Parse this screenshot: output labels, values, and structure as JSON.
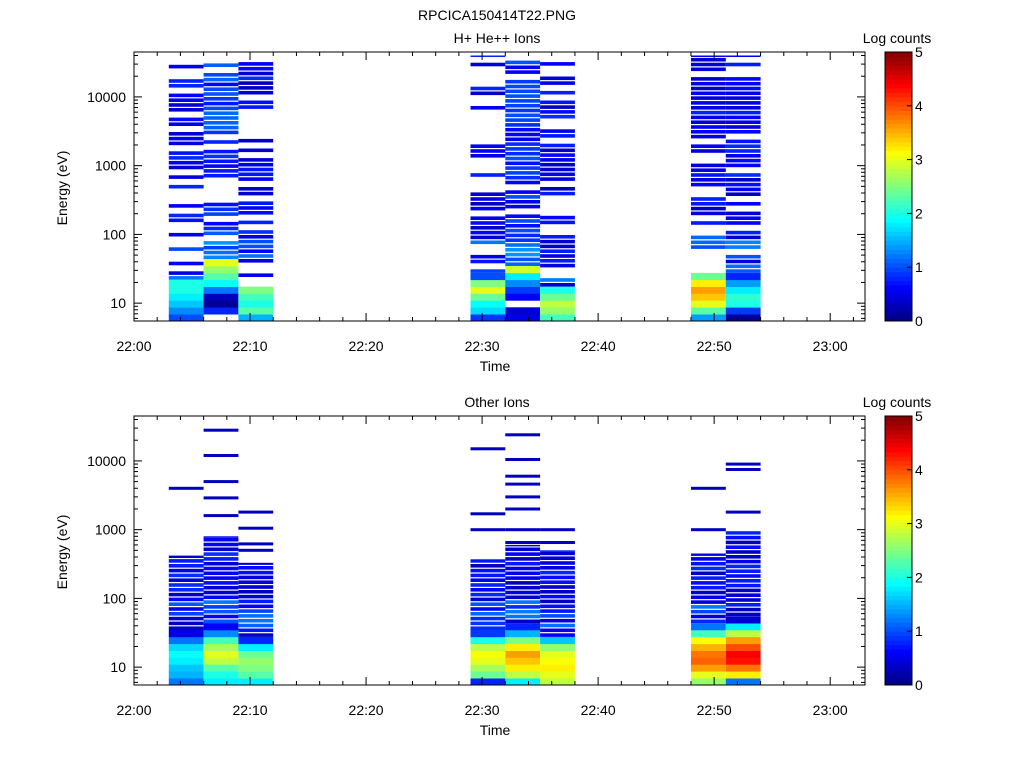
{
  "figure": {
    "title": "RPCICA150414T22.PNG"
  },
  "chart_data": [
    {
      "type": "heatmap",
      "title": "H+ He++ Ions",
      "xlabel": "Time",
      "ylabel": "Energy (eV)",
      "x_ticks": [
        "22:00",
        "22:10",
        "22:20",
        "22:30",
        "22:40",
        "22:50",
        "23:00"
      ],
      "xlim": [
        "22:00",
        "23:03"
      ],
      "y_scale": "log",
      "ylim": [
        5.5,
        45000
      ],
      "y_ticks": [
        10,
        100,
        1000,
        10000
      ],
      "y_tick_labels": [
        "10",
        "100",
        "1000",
        "10000"
      ],
      "colorbar": {
        "label": "Log counts",
        "range": [
          0,
          5
        ],
        "ticks": [
          "0",
          "1",
          "2",
          "3",
          "4",
          "5"
        ]
      },
      "grid": false,
      "columns": [
        {
          "start": "22:03",
          "end": "22:06",
          "emin": 5.5,
          "emax": 40000,
          "fill": 0.6,
          "low_energy_profile": [
            1.0,
            1.3,
            1.6,
            1.8,
            2.0,
            2.0
          ],
          "high_level": 0.3
        },
        {
          "start": "22:06",
          "end": "22:09",
          "emin": 5.5,
          "emax": 40000,
          "fill": 0.85,
          "low_energy_profile": [
            null,
            0.8,
            0.1,
            0.3,
            1.2,
            1.9,
            2.3,
            2.6,
            3.0
          ],
          "high_level": 0.6
        },
        {
          "start": "22:09",
          "end": "22:12",
          "emin": 5.5,
          "emax": 35000,
          "fill": 0.65,
          "low_energy_profile": [
            1.5,
            2.3,
            2.0,
            2.2,
            2.5
          ],
          "high_level": 0.3
        },
        {
          "start": "22:29",
          "end": "22:32",
          "emin": 5.5,
          "emax": 40000,
          "fill": 0.6,
          "low_energy_profile": [
            0.9,
            1.7,
            1.9,
            2.4,
            3.0,
            2.5,
            1.0
          ],
          "high_level": 0.3
        },
        {
          "start": "22:32",
          "end": "22:35",
          "emin": 5.5,
          "emax": 40000,
          "fill": 0.9,
          "low_energy_profile": [
            0.5,
            0.4,
            null,
            0.6,
            0.9,
            1.3,
            1.8,
            2.9
          ],
          "high_level": 0.5
        },
        {
          "start": "22:35",
          "end": "22:38",
          "emin": 5.5,
          "emax": 35000,
          "fill": 0.7,
          "low_energy_profile": [
            2.2,
            2.6,
            2.8,
            2.4,
            2.0
          ],
          "high_level": 0.3
        },
        {
          "start": "22:48",
          "end": "22:51",
          "emin": 5.5,
          "emax": 40000,
          "fill": 0.65,
          "low_energy_profile": [
            1.4,
            2.3,
            3.0,
            3.4,
            3.6,
            3.2,
            2.4
          ],
          "high_level": 0.3
        },
        {
          "start": "22:51",
          "end": "22:54",
          "emin": 5.5,
          "emax": 40000,
          "fill": 0.8,
          "low_energy_profile": [
            0.1,
            0.9,
            2.0,
            2.1,
            1.8,
            1.4,
            0.8
          ],
          "high_level": 0.3
        }
      ]
    },
    {
      "type": "heatmap",
      "title": "Other Ions",
      "xlabel": "Time",
      "ylabel": "Energy (eV)",
      "x_ticks": [
        "22:00",
        "22:10",
        "22:20",
        "22:30",
        "22:40",
        "22:50",
        "23:00"
      ],
      "xlim": [
        "22:00",
        "23:03"
      ],
      "y_scale": "log",
      "ylim": [
        5.5,
        45000
      ],
      "y_ticks": [
        10,
        100,
        1000,
        10000
      ],
      "y_tick_labels": [
        "10",
        "100",
        "1000",
        "10000"
      ],
      "colorbar": {
        "label": "Log counts",
        "range": [
          0,
          5
        ],
        "ticks": [
          "0",
          "1",
          "2",
          "3",
          "4",
          "5"
        ]
      },
      "grid": false,
      "columns": [
        {
          "start": "22:03",
          "end": "22:06",
          "emin": 5.5,
          "emax": 420,
          "fill": 1.0,
          "low_energy_profile": [
            1.2,
            1.5,
            1.6,
            1.8,
            1.9,
            1.7,
            1.2,
            0.5
          ],
          "sparse_lines": [
            4000
          ]
        },
        {
          "start": "22:06",
          "end": "22:09",
          "emin": 5.5,
          "emax": 800,
          "fill": 1.0,
          "low_energy_profile": [
            1.8,
            2.0,
            2.3,
            2.8,
            3.0,
            2.7,
            2.2,
            1.3,
            0.6
          ],
          "sparse_lines": [
            1600,
            2900,
            5000,
            12000,
            28000
          ]
        },
        {
          "start": "22:09",
          "end": "22:12",
          "emin": 5.5,
          "emax": 330,
          "fill": 1.0,
          "low_energy_profile": [
            1.8,
            2.3,
            2.5,
            2.6,
            2.4,
            1.8,
            0.8
          ],
          "sparse_lines": [
            500,
            620,
            1050,
            1800
          ]
        },
        {
          "start": "22:29",
          "end": "22:32",
          "emin": 5.5,
          "emax": 370,
          "fill": 1.0,
          "low_energy_profile": [
            0.8,
            2.4,
            2.7,
            3.0,
            3.1,
            2.8,
            2.0,
            0.9
          ],
          "sparse_lines": [
            1000,
            1700,
            15000
          ]
        },
        {
          "start": "22:32",
          "end": "22:35",
          "emin": 5.5,
          "emax": 600,
          "fill": 1.0,
          "low_energy_profile": [
            1.8,
            2.8,
            3.2,
            3.4,
            3.6,
            3.2,
            2.5,
            1.5,
            0.8
          ],
          "sparse_lines": [
            650,
            1000,
            2000,
            3000,
            4600,
            6000,
            10500,
            24000
          ]
        },
        {
          "start": "22:35",
          "end": "22:38",
          "emin": 5.5,
          "emax": 500,
          "fill": 1.0,
          "low_energy_profile": [
            2.8,
            3.0,
            3.2,
            3.1,
            3.0,
            2.6,
            1.6
          ],
          "sparse_lines": [
            650,
            1000
          ]
        },
        {
          "start": "22:48",
          "end": "22:51",
          "emin": 5.5,
          "emax": 450,
          "fill": 1.0,
          "low_energy_profile": [
            2.6,
            3.0,
            3.6,
            3.9,
            3.8,
            3.5,
            3.1,
            2.2,
            1.2
          ],
          "sparse_lines": [
            1000,
            4000
          ]
        },
        {
          "start": "22:51",
          "end": "22:54",
          "emin": 5.5,
          "emax": 950,
          "fill": 1.0,
          "low_energy_profile": [
            1.2,
            3.2,
            3.8,
            4.3,
            4.4,
            4.0,
            3.6,
            2.8,
            1.8,
            0.4
          ],
          "sparse_lines": [
            1800,
            7500,
            9000
          ]
        }
      ]
    }
  ]
}
